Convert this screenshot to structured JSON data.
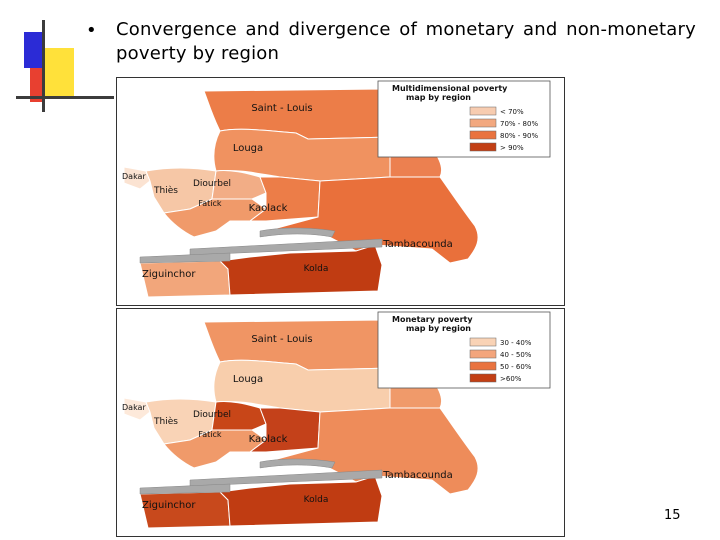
{
  "slide": {
    "bullet": "•",
    "title": "Convergence and divergence of monetary and non-monetary poverty by region",
    "page_number": "15"
  },
  "colors": {
    "deco_blue": "#2b2bd6",
    "deco_yellow": "#ffe13a",
    "deco_red": "#e84030",
    "deco_line": "#3c3c3c",
    "river_grey": "#a9a9a9"
  },
  "maps": [
    {
      "legend_title_line1": "Multidimensional poverty",
      "legend_title_line2": "map by region",
      "legend": [
        {
          "label": "< 70%",
          "color": "#f7ccb0"
        },
        {
          "label": "70% - 80%",
          "color": "#f2a87f"
        },
        {
          "label": "80% - 90%",
          "color": "#e9733f"
        },
        {
          "label": "> 90%",
          "color": "#c23f14"
        }
      ],
      "regions": {
        "saint_louis": {
          "label": "Saint - Louis",
          "color": "#ec7d48"
        },
        "louga": {
          "label": "Louga",
          "color": "#f09260"
        },
        "dakar": {
          "label": "Dakar",
          "color": "#fbe3d2"
        },
        "thies": {
          "label": "Thiès",
          "color": "#f6c7a6"
        },
        "diourbel": {
          "label": "Diourbel",
          "color": "#f2ad86"
        },
        "fatick": {
          "label": "Fatick",
          "color": "#f09a6a"
        },
        "kaolack": {
          "label": "Kaolack",
          "color": "#ec7d48"
        },
        "tambacounda": {
          "label": "Tambacounda",
          "color": "#e9703b"
        },
        "kolda": {
          "label": "Kolda",
          "color": "#c03c12"
        },
        "ziguinchor": {
          "label": "Ziguinchor",
          "color": "#f2a67b"
        },
        "matam": {
          "color": "#ec8050"
        }
      }
    },
    {
      "legend_title_line1": "Monetary poverty",
      "legend_title_line2": "map by region",
      "legend": [
        {
          "label": "30 - 40%",
          "color": "#f9d3b6"
        },
        {
          "label": "40 - 50%",
          "color": "#f3a57c"
        },
        {
          "label": "50 - 60%",
          "color": "#e9733f"
        },
        {
          "label": ">60%",
          "color": "#c23f14"
        }
      ],
      "regions": {
        "saint_louis": {
          "label": "Saint - Louis",
          "color": "#f09564"
        },
        "louga": {
          "label": "Louga",
          "color": "#f8ceac"
        },
        "dakar": {
          "label": "Dakar",
          "color": "#fde9da"
        },
        "thies": {
          "label": "Thiès",
          "color": "#f9d3b6"
        },
        "diourbel": {
          "label": "Diourbel",
          "color": "#c84618"
        },
        "fatick": {
          "label": "Fatick",
          "color": "#f09a6a"
        },
        "kaolack": {
          "label": "Kaolack",
          "color": "#c4411a"
        },
        "tambacounda": {
          "label": "Tambacounda",
          "color": "#ee8c5a"
        },
        "kolda": {
          "label": "Kolda",
          "color": "#c03c12"
        },
        "ziguinchor": {
          "label": "Ziguinchor",
          "color": "#c8491c"
        },
        "matam": {
          "color": "#f09a6a"
        }
      }
    }
  ]
}
